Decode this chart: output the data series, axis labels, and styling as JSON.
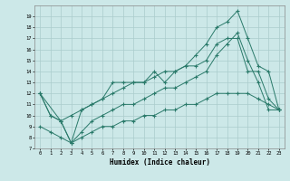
{
  "xlabel": "Humidex (Indice chaleur)",
  "ylabel": "",
  "xlim": [
    -0.5,
    23.5
  ],
  "ylim": [
    7,
    20
  ],
  "yticks": [
    7,
    8,
    9,
    10,
    11,
    12,
    13,
    14,
    15,
    16,
    17,
    18,
    19
  ],
  "xticks": [
    0,
    1,
    2,
    3,
    4,
    5,
    6,
    7,
    8,
    9,
    10,
    11,
    12,
    13,
    14,
    15,
    16,
    17,
    18,
    19,
    20,
    21,
    22,
    23
  ],
  "bg_color": "#cce8e8",
  "grid_color": "#aacccc",
  "line_color": "#2a7a6a",
  "line1_x": [
    0,
    1,
    2,
    3,
    4,
    5,
    6,
    7,
    8,
    9,
    10,
    11,
    12,
    13,
    14,
    15,
    16,
    17,
    18,
    19,
    20,
    21,
    22,
    23
  ],
  "line1_y": [
    12,
    10,
    9.5,
    7.5,
    10.5,
    11,
    11.5,
    13,
    13,
    13,
    13,
    14,
    13,
    14,
    14.5,
    15.5,
    16.5,
    18,
    18.5,
    19.5,
    17,
    14.5,
    14,
    10.5
  ],
  "line2_x": [
    0,
    1,
    2,
    3,
    4,
    5,
    6,
    7,
    8,
    9,
    10,
    11,
    12,
    13,
    14,
    15,
    16,
    17,
    18,
    19,
    20,
    21,
    22,
    23
  ],
  "line2_y": [
    12,
    10,
    9.5,
    10,
    10.5,
    11,
    11.5,
    12,
    12.5,
    13,
    13,
    13.5,
    14,
    14,
    14.5,
    14.5,
    15,
    16.5,
    17,
    17,
    14,
    14,
    11.5,
    10.5
  ],
  "line3_x": [
    0,
    2,
    3,
    4,
    5,
    6,
    7,
    8,
    9,
    10,
    11,
    12,
    13,
    14,
    15,
    16,
    17,
    18,
    19,
    20,
    21,
    22,
    23
  ],
  "line3_y": [
    12,
    9.5,
    7.5,
    8.5,
    9.5,
    10,
    10.5,
    11,
    11,
    11.5,
    12,
    12.5,
    12.5,
    13,
    13.5,
    14,
    15.5,
    16.5,
    17.5,
    15,
    13,
    10.5,
    10.5
  ],
  "line4_x": [
    0,
    1,
    2,
    3,
    4,
    5,
    6,
    7,
    8,
    9,
    10,
    11,
    12,
    13,
    14,
    15,
    16,
    17,
    18,
    19,
    20,
    21,
    22,
    23
  ],
  "line4_y": [
    9,
    8.5,
    8,
    7.5,
    8,
    8.5,
    9,
    9,
    9.5,
    9.5,
    10,
    10,
    10.5,
    10.5,
    11,
    11,
    11.5,
    12,
    12,
    12,
    12,
    11.5,
    11,
    10.5
  ]
}
